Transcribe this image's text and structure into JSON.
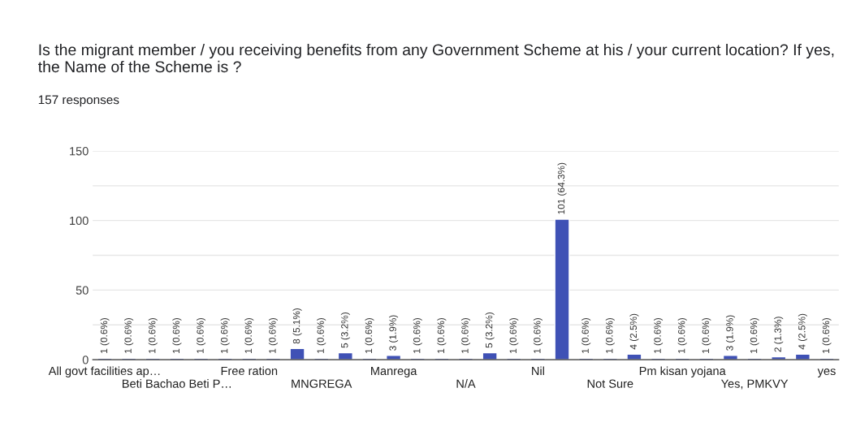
{
  "chart_data": {
    "type": "bar",
    "title": "Is the migrant member / you receiving benefits from any Government Scheme at his / your current location? If yes, the Name of the Scheme is ?",
    "subtitle": "157 responses",
    "categories": [
      "All govt facilities ap…",
      null,
      null,
      "Beti Bachao Beti P…",
      null,
      null,
      "Free ration",
      null,
      null,
      "MNGREGA",
      null,
      null,
      "Manrega",
      null,
      null,
      "N/A",
      null,
      null,
      "Nil",
      null,
      null,
      "Not Sure",
      null,
      null,
      "Pm kisan yojana",
      null,
      null,
      "Yes, PMKVY",
      null,
      null,
      "yes"
    ],
    "values": [
      1,
      1,
      1,
      1,
      1,
      1,
      1,
      1,
      8,
      1,
      5,
      1,
      3,
      1,
      1,
      1,
      5,
      1,
      1,
      101,
      1,
      1,
      4,
      1,
      1,
      1,
      3,
      1,
      2,
      4,
      1
    ],
    "value_labels": [
      "1 (0.6%)",
      "1 (0.6%)",
      "1 (0.6%)",
      "1 (0.6%)",
      "1 (0.6%)",
      "1 (0.6%)",
      "1 (0.6%)",
      "1 (0.6%)",
      "8 (5.1%)",
      "1 (0.6%)",
      "5 (3.2%)",
      "1 (0.6%)",
      "3 (1.9%)",
      "1 (0.6%)",
      "1 (0.6%)",
      "1 (0.6%)",
      "5 (3.2%)",
      "1 (0.6%)",
      "1 (0.6%)",
      "101 (64.3%)",
      "1 (0.6%)",
      "1 (0.6%)",
      "4 (2.5%)",
      "1 (0.6%)",
      "1 (0.6%)",
      "1 (0.6%)",
      "3 (1.9%)",
      "1 (0.6%)",
      "2 (1.3%)",
      "4 (2.5%)",
      "1 (0.6%)"
    ],
    "color": "#3f51b5",
    "ylim": [
      0,
      150
    ],
    "yticks": [
      0,
      {
        "value": 25,
        "label": null
      },
      50,
      {
        "value": 75,
        "label": null
      },
      100,
      {
        "value": 125,
        "label": null
      },
      150
    ],
    "grid": "y",
    "legend": false
  }
}
